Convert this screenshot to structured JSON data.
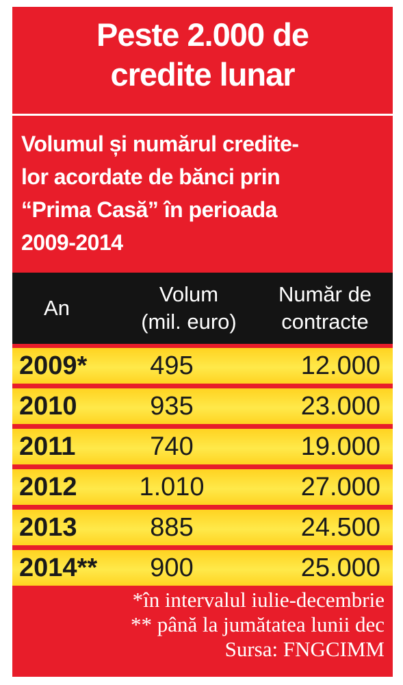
{
  "title": "Peste 2.000 de\ncredite lunar",
  "subtitle": "Volumul și numărul credite-\nlor acordate de bănci prin\n“Prima Casă” în perioada\n2009-2014",
  "colors": {
    "panel": "#e81d2a",
    "header_bg": "#141414",
    "row_bg": "#ffe94a",
    "text_light": "#ffffff",
    "text_dark": "#1a1a1a"
  },
  "chart_data": {
    "type": "table",
    "columns": [
      "An",
      "Volum\n(mil. euro)",
      "Număr de\ncontracte"
    ],
    "rows": [
      [
        "2009*",
        "495",
        "12.000"
      ],
      [
        "2010",
        "935",
        "23.000"
      ],
      [
        "2011",
        "740",
        "19.000"
      ],
      [
        "2012",
        "1.010",
        "27.000"
      ],
      [
        "2013",
        "885",
        "24.500"
      ],
      [
        "2014**",
        "900",
        "25.000"
      ]
    ]
  },
  "notes": [
    "*în intervalul iulie-decembrie",
    "** până la jumătatea lunii dec",
    "Sursa: FNGCIMM"
  ]
}
